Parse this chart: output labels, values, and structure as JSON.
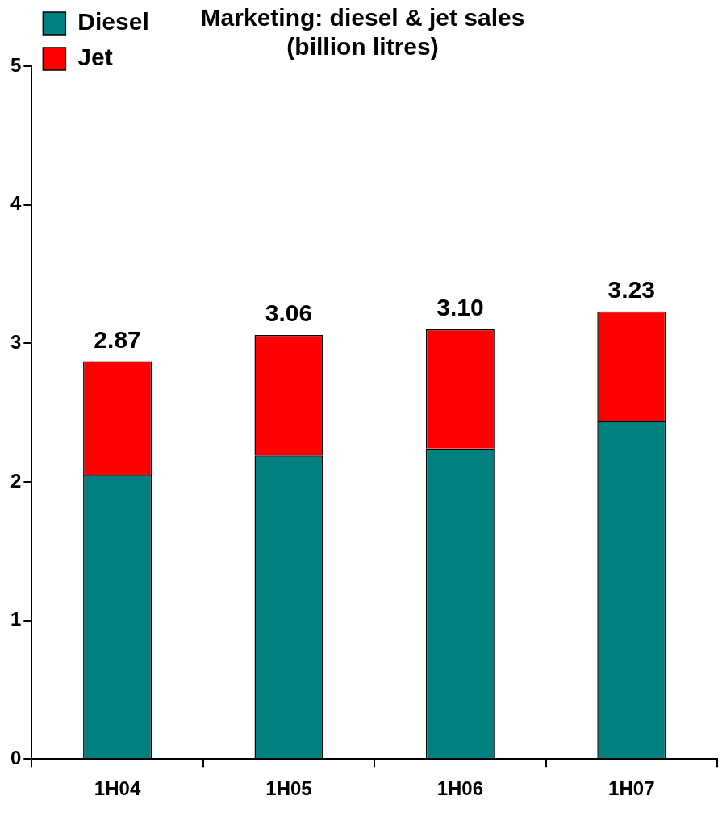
{
  "chart_data": {
    "type": "bar",
    "title": [
      "Marketing: diesel & jet sales",
      "(billion litres)"
    ],
    "categories": [
      "1H04",
      "1H05",
      "1H06",
      "1H07"
    ],
    "stacked": true,
    "series": [
      {
        "name": "Diesel",
        "color": "#008080",
        "values": [
          2.05,
          2.19,
          2.24,
          2.44
        ]
      },
      {
        "name": "Jet",
        "color": "#ff0000",
        "values": [
          0.82,
          0.87,
          0.86,
          0.79
        ]
      }
    ],
    "totals": [
      "2.87",
      "3.06",
      "3.10",
      "3.23"
    ],
    "ylim": [
      0,
      5
    ],
    "yticks": [
      0,
      1,
      2,
      3,
      4,
      5
    ],
    "legend": "top left"
  }
}
